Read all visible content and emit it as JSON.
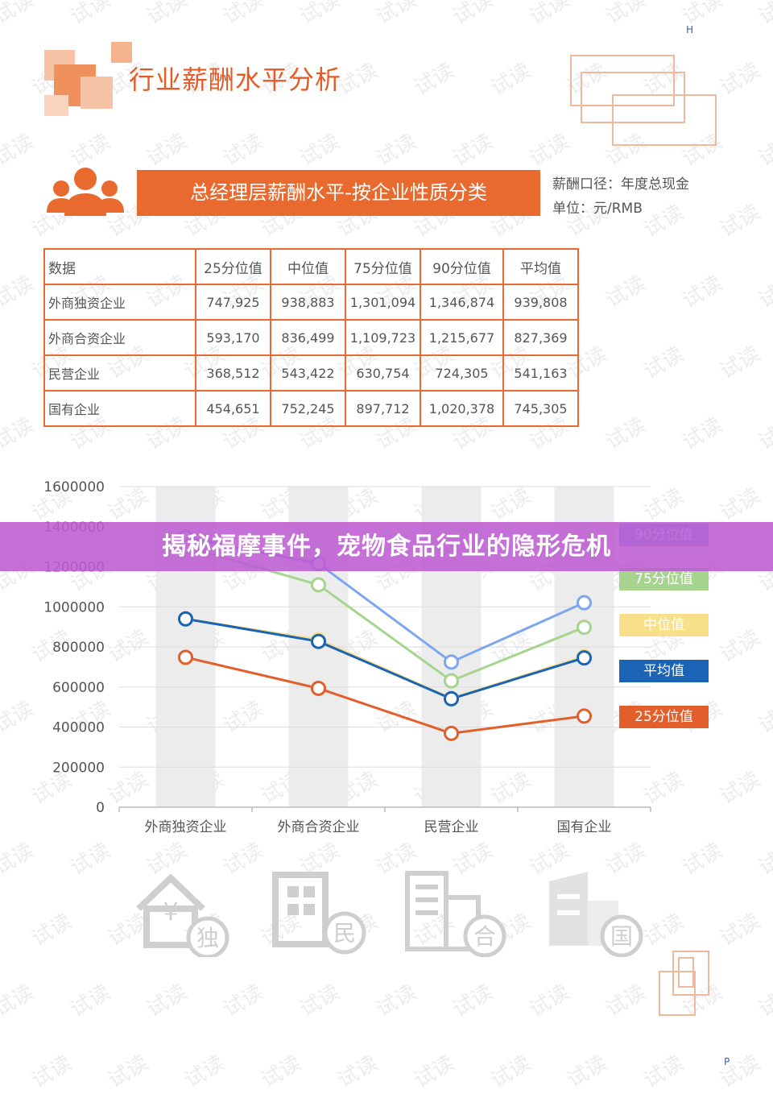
{
  "page_title": "行业薪酬水平分析",
  "corner_top": "H",
  "corner_bottom": "P",
  "watermark": "试读",
  "section_title": "总经理层薪酬水平-按企业性质分类",
  "meta": {
    "caliber": "薪酬口径：年度总现金",
    "unit": "单位：元/RMB"
  },
  "table": {
    "header": [
      "数据",
      "25分位值",
      "中位值",
      "75分位值",
      "90分位值",
      "平均值"
    ],
    "rows": [
      {
        "name": "外商独资企业",
        "values": [
          "747,925",
          "938,883",
          "1,301,094",
          "1,346,874",
          "939,808"
        ]
      },
      {
        "name": "外商合资企业",
        "values": [
          "593,170",
          "836,499",
          "1,109,723",
          "1,215,677",
          "827,369"
        ]
      },
      {
        "name": "民营企业",
        "values": [
          "368,512",
          "543,422",
          "630,754",
          "724,305",
          "541,163"
        ]
      },
      {
        "name": "国有企业",
        "values": [
          "454,651",
          "752,245",
          "897,712",
          "1,020,378",
          "745,305"
        ]
      }
    ]
  },
  "chart_data": {
    "type": "line",
    "categories": [
      "外商独资企业",
      "外商合资企业",
      "民营企业",
      "国有企业"
    ],
    "ylim": [
      0,
      1600000
    ],
    "yticks": [
      "0",
      "200000",
      "400000",
      "600000",
      "800000",
      "1000000",
      "1200000",
      "1400000",
      "1600000"
    ],
    "series": [
      {
        "name": "90分位值",
        "color": "#7ea6ee",
        "values": [
          1346874,
          1215677,
          724305,
          1020378
        ]
      },
      {
        "name": "75分位值",
        "color": "#a6d48e",
        "values": [
          1301094,
          1109723,
          630754,
          897712
        ]
      },
      {
        "name": "中位值",
        "color": "#f8e08a",
        "values": [
          938883,
          836499,
          543422,
          752245
        ]
      },
      {
        "name": "平均值",
        "color": "#1b64b5",
        "values": [
          939808,
          827369,
          541163,
          745305
        ]
      },
      {
        "name": "25分位值",
        "color": "#e25f2c",
        "values": [
          747925,
          593170,
          368512,
          454651
        ]
      }
    ],
    "grid": true,
    "legend": "right"
  },
  "overlay_title": "揭秘福摩事件，宠物食品行业的隐形危机",
  "building_icons": [
    {
      "label": "独",
      "icon": "house-yen-icon"
    },
    {
      "label": "民",
      "icon": "building-private-icon"
    },
    {
      "label": "合",
      "icon": "building-joint-icon"
    },
    {
      "label": "国",
      "icon": "building-state-icon"
    }
  ],
  "colors": {
    "accent": "#e86a2f",
    "table_border": "#e86a2f",
    "overlay": "#bc5cd2",
    "icon_gray": "#cccccc"
  }
}
